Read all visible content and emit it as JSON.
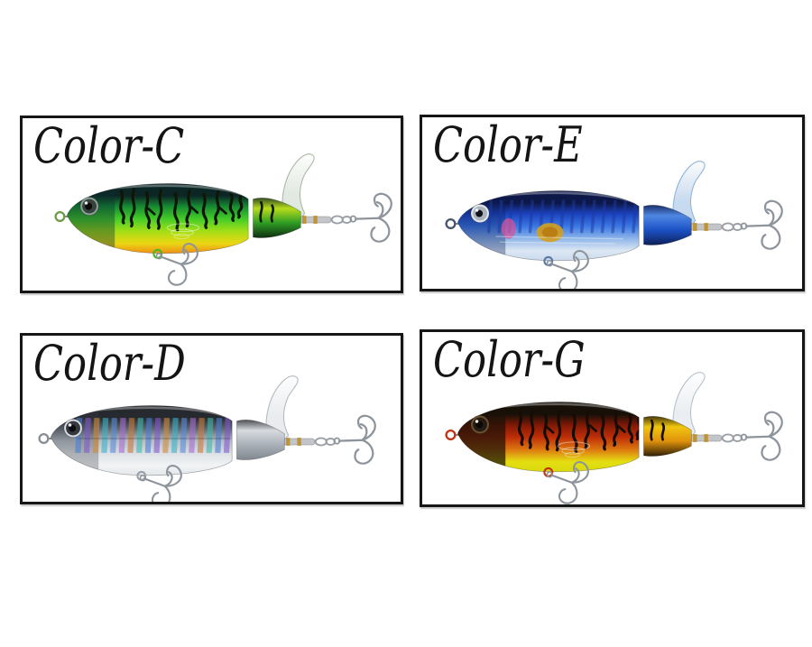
{
  "page": {
    "background": "#ffffff",
    "panel_border_color": "#161616",
    "label_color": "#141414"
  },
  "panels": [
    {
      "id": "color-c",
      "label": "Color-C",
      "lure": {
        "name": "plopper-lure-firetiger",
        "pattern": "tiger",
        "colors": {
          "back": "#0c2626",
          "upper": "#168a33",
          "side": "#45cc28",
          "mid": "#a6df17",
          "belly": "#ead713",
          "bellyEdge": "#ef8b16",
          "headShade": "#0d3330",
          "headShadeOpacity": 0.4,
          "stripe": "#0e1604",
          "tailTop": "#b8dc1c",
          "tailMid": "#2f9e24",
          "tailBottom": "#0c2010",
          "blade": "#dfe8de",
          "bladeEdge": "#a8b8a4",
          "eyeRing": "#8fa096",
          "eyeOuter": "#37423f",
          "pupil": "#0a0c0b",
          "noseRing": "#6f9a46",
          "bellyRing": "#46b82a",
          "hook": "#8d949b",
          "pin": "#c2c6ca",
          "pinBand": "#bf9434"
        }
      }
    },
    {
      "id": "color-e",
      "label": "Color-E",
      "lure": {
        "name": "plopper-lure-blue-sardine",
        "pattern": "sardine",
        "colors": {
          "back": "#0d1848",
          "upper": "#1b41bd",
          "side": "#3a77e4",
          "mid": "#8fb6e9",
          "belly": "#dce7f3",
          "bellyEdge": "#c9d9ec",
          "headShade": "#0d1f5a",
          "headShadeOpacity": 0.35,
          "stripe": "#1c3aa0",
          "accentPink": "#d4539c",
          "accentYellow": "#d4a01e",
          "accentYellowCore": "#b87a10",
          "tailTop": "#4e87e2",
          "tailMid": "#1c52c6",
          "tailBottom": "#0b1a4a",
          "blade": "#c4d8ee",
          "bladeEdge": "#8fb2d8",
          "eyeRing": "#e4e8ec",
          "eyeOuter": "#aab2bc",
          "pupil": "#101318",
          "noseRing": "#46546a",
          "bellyRing": "#5a7aa8",
          "hook": "#8d949b",
          "pin": "#c2c6ca",
          "pinBand": "#bf9434"
        }
      }
    },
    {
      "id": "color-d",
      "label": "Color-D",
      "lure": {
        "name": "plopper-lure-silver-shad",
        "pattern": "holo",
        "colors": {
          "back": "#26292e",
          "upper": "#5d656e",
          "side": "#b6bdc5",
          "mid": "#dde1e5",
          "belly": "#f1f3f5",
          "bellyEdge": "#e4e7ea",
          "headShade": "#3a3f46",
          "headShadeOpacity": 0.3,
          "stripe": "#5a6470",
          "holoBars": [
            "#4a7ed4",
            "#8059ce",
            "#d08a3a",
            "#3ab2c4",
            "#5a8ad8",
            "#a86ad0",
            "#c8793a",
            "#40b8ac"
          ],
          "tailTop": "#d7dbdf",
          "tailMid": "#aab0b8",
          "tailBottom": "#7c838c",
          "blade": "#e8eaed",
          "bladeEdge": "#b2b9c1",
          "eyeRing": "#d9dde1",
          "eyeOuter": "#35393f",
          "pupil": "#0c0d0f",
          "noseRing": "#868d95",
          "bellyRing": "#9aa1a9",
          "hook": "#8d949b",
          "pin": "#c2c6ca",
          "pinBand": "#bf9434"
        }
      }
    },
    {
      "id": "color-g",
      "label": "Color-G",
      "lure": {
        "name": "plopper-lure-red-tiger",
        "pattern": "tiger",
        "colors": {
          "back": "#161009",
          "upper": "#7e1806",
          "side": "#bf2e08",
          "mid": "#dd7a10",
          "belly": "#e4df12",
          "bellyEdge": "#d8d90e",
          "headShade": "#1a1208",
          "headShadeOpacity": 0.72,
          "stripe": "#150c04",
          "tailTop": "#efc60e",
          "tailMid": "#e0920c",
          "tailBottom": "#1a1106",
          "blade": "#e9edf1",
          "bladeEdge": "#b6c0ca",
          "eyeRing": "#6b5130",
          "eyeOuter": "#241b12",
          "pupil": "#0a0705",
          "noseRing": "#c03310",
          "bellyRing": "#c03310",
          "hook": "#8d949b",
          "pin": "#c2c6ca",
          "pinBand": "#bf9434"
        }
      }
    }
  ]
}
